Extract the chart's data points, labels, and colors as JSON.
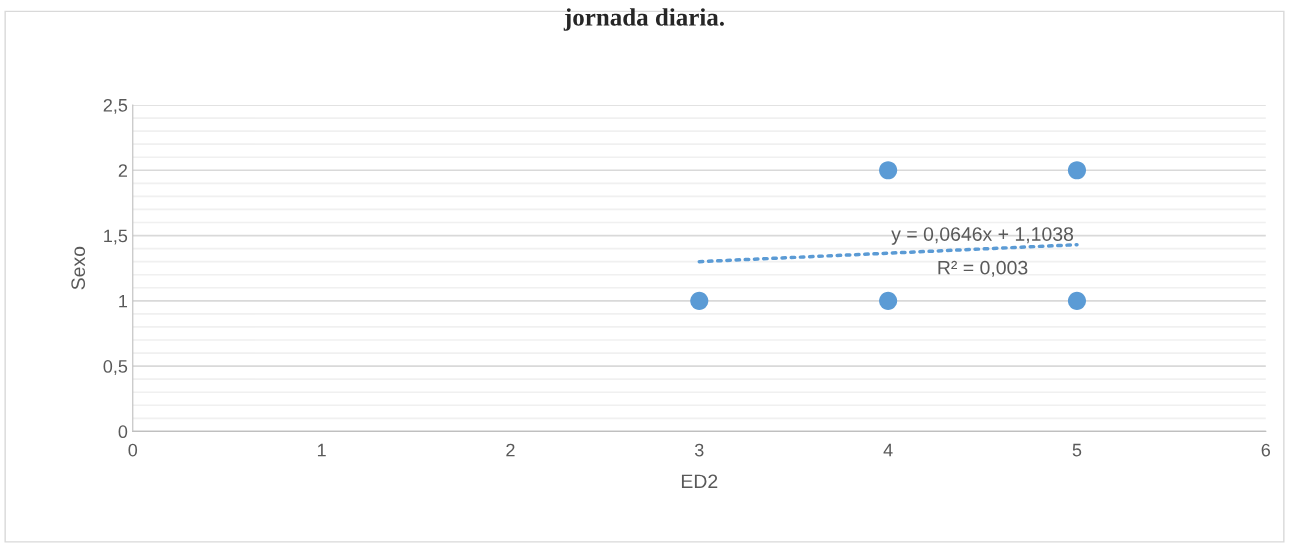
{
  "chart_data": {
    "type": "scatter",
    "title": "jornada diaria.",
    "xlabel": "ED2",
    "ylabel": "Sexo",
    "series": [
      {
        "color": "#5b9bd5",
        "x": [
          3,
          4,
          4,
          5,
          5
        ],
        "values": [
          1,
          1,
          2,
          1,
          2
        ],
        "marker": "circle"
      },
      {
        "type": "line",
        "color": "#5b9bd5",
        "x": [
          3,
          5
        ],
        "values": [
          1.3,
          1.43
        ],
        "line_style": "dotted",
        "marker": "none"
      }
    ],
    "annotations": [
      {
        "text": "y = 0,0646x + 1,1038\nR² = 0,003",
        "x": 4.5,
        "y": 1.37
      }
    ],
    "xlim": [
      0,
      6
    ],
    "xticks": [
      0,
      1,
      2,
      3,
      4,
      5,
      6
    ],
    "ylim": [
      0,
      2.5
    ],
    "yticks": [
      0,
      {
        "value": 0.1,
        "label": null
      },
      {
        "value": 0.2,
        "label": null
      },
      {
        "value": 0.3,
        "label": null
      },
      {
        "value": 0.4,
        "label": null
      },
      {
        "value": 0.5,
        "label": "0,5"
      },
      {
        "value": 0.6,
        "label": null
      },
      {
        "value": 0.7,
        "label": null
      },
      {
        "value": 0.8,
        "label": null
      },
      {
        "value": 0.9,
        "label": null
      },
      1,
      {
        "value": 1.1,
        "label": null
      },
      {
        "value": 1.2,
        "label": null
      },
      {
        "value": 1.3,
        "label": null
      },
      {
        "value": 1.4,
        "label": null
      },
      {
        "value": 1.5,
        "label": "1,5"
      },
      {
        "value": 1.6,
        "label": null
      },
      {
        "value": 1.7,
        "label": null
      },
      {
        "value": 1.8,
        "label": null
      },
      {
        "value": 1.9,
        "label": null
      },
      2,
      {
        "value": 2.1,
        "label": null
      },
      {
        "value": 2.2,
        "label": null
      },
      {
        "value": 2.3,
        "label": null
      },
      {
        "value": 2.4,
        "label": null
      },
      {
        "value": 2.5,
        "label": "2,5"
      }
    ],
    "grid": "y",
    "legend": false
  }
}
